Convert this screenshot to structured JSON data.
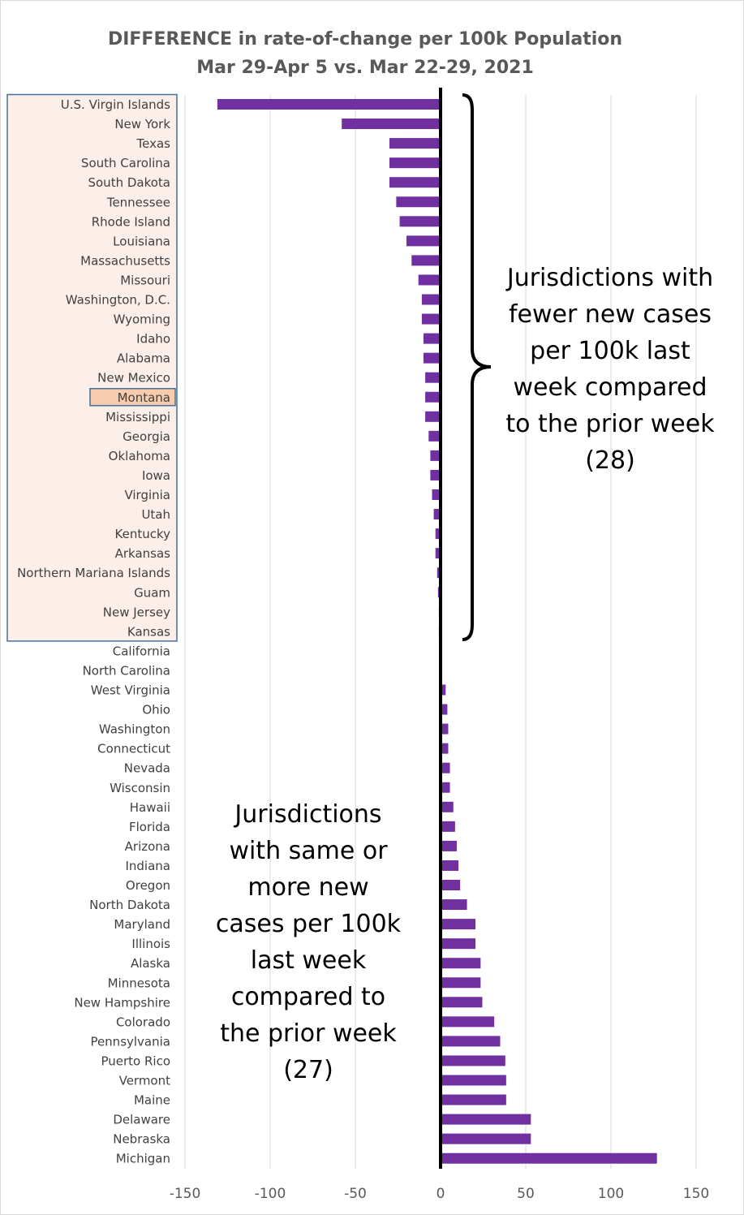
{
  "chart_data": {
    "type": "bar",
    "orientation": "horizontal",
    "title": "DIFFERENCE in rate-of-change per 100k Population",
    "subtitle": "Mar 29-Apr 5 vs. Mar 22-29, 2021",
    "xlabel": "",
    "ylabel": "",
    "xlim": [
      -150,
      150
    ],
    "xticks": [
      -150,
      -100,
      -50,
      0,
      50,
      100,
      150
    ],
    "grid": true,
    "bar_color": "#7030A0",
    "highlight_box_color": "#FCEFEA",
    "highlight_item_color": "#F8CBAD",
    "highlight_border_color": "#41719C",
    "highlighted_category": "Montana",
    "categories": [
      "U.S. Virgin Islands",
      "New York",
      "Texas",
      "South Carolina",
      "South Dakota",
      "Tennessee",
      "Rhode Island",
      "Louisiana",
      "Massachusetts",
      "Missouri",
      "Washington, D.C.",
      "Wyoming",
      "Idaho",
      "Alabama",
      "New Mexico",
      "Montana",
      "Mississippi",
      "Georgia",
      "Oklahoma",
      "Iowa",
      "Virginia",
      "Utah",
      "Kentucky",
      "Arkansas",
      "Northern Mariana Islands",
      "Guam",
      "New Jersey",
      "Kansas",
      "California",
      "North Carolina",
      "West Virginia",
      "Ohio",
      "Washington",
      "Connecticut",
      "Nevada",
      "Wisconsin",
      "Hawaii",
      "Florida",
      "Arizona",
      "Indiana",
      "Oregon",
      "North Dakota",
      "Maryland",
      "Illinois",
      "Alaska",
      "Minnesota",
      "New Hampshire",
      "Colorado",
      "Pennsylvania",
      "Puerto Rico",
      "Vermont",
      "Maine",
      "Delaware",
      "Nebraska",
      "Michigan"
    ],
    "values": [
      -131,
      -58,
      -30,
      -30,
      -30,
      -26,
      -24,
      -20,
      -17,
      -13,
      -11,
      -11,
      -10,
      -10,
      -9,
      -9,
      -9,
      -7,
      -6,
      -6,
      -5,
      -4,
      -3,
      -3,
      -2,
      -1.5,
      -1,
      -1,
      0,
      0.5,
      3,
      4,
      4.5,
      4.5,
      5.5,
      5.5,
      7.5,
      8.5,
      9.5,
      10.5,
      11.5,
      15.5,
      20.5,
      20.5,
      23.5,
      23.5,
      24.5,
      31.5,
      35,
      38,
      38.5,
      38.5,
      53,
      53,
      127
    ],
    "annotations": [
      {
        "group": "fewer",
        "lines": [
          "Jurisdictions with",
          "fewer new cases",
          "per 100k last",
          "week compared",
          "to the prior week",
          "(28)"
        ]
      },
      {
        "group": "more",
        "lines": [
          "Jurisdictions",
          "with same or",
          "more new",
          "cases per 100k",
          "last week",
          "compared to",
          "the prior week",
          "(27)"
        ]
      }
    ]
  }
}
